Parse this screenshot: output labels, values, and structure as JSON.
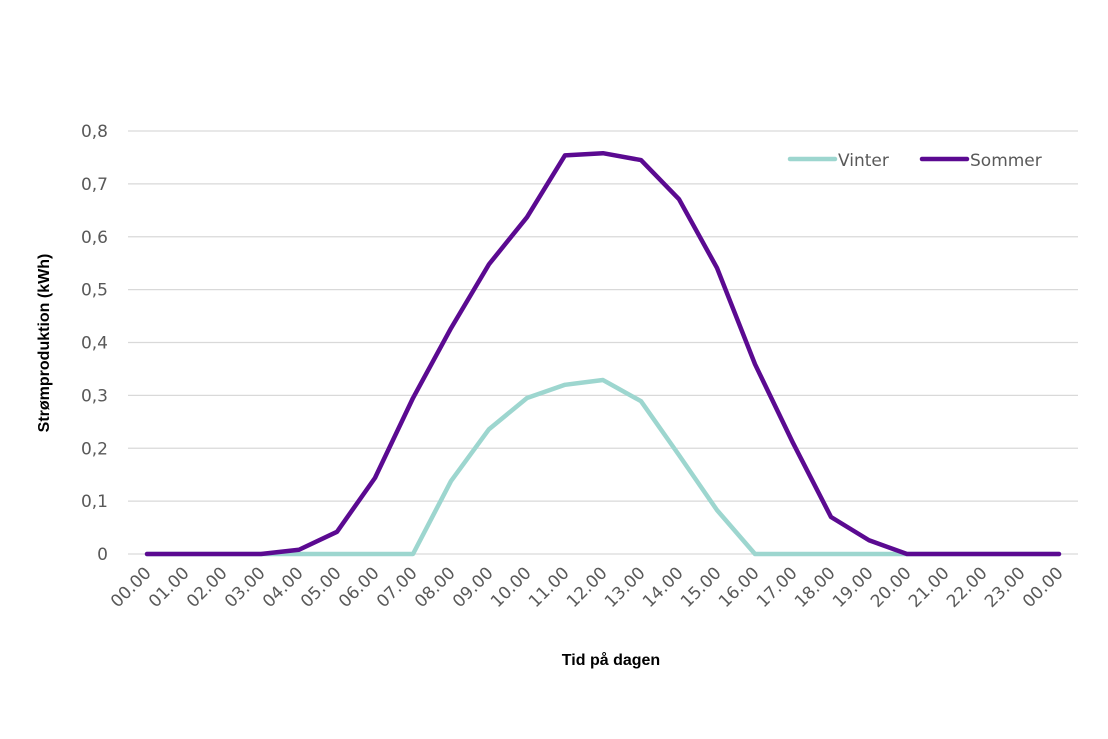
{
  "chart_data": {
    "type": "line",
    "title": "",
    "xlabel": "Tid på dagen",
    "ylabel": "Strømproduktion (kWh)",
    "ylim": [
      0,
      0.8
    ],
    "yticks": [
      "0",
      "0,1",
      "0,2",
      "0,3",
      "0,4",
      "0,5",
      "0,6",
      "0,7",
      "0,8"
    ],
    "ytick_values": [
      0,
      0.1,
      0.2,
      0.3,
      0.4,
      0.5,
      0.6,
      0.7,
      0.8
    ],
    "categories": [
      "00.00",
      "01.00",
      "02.00",
      "03.00",
      "04.00",
      "05.00",
      "06.00",
      "07.00",
      "08.00",
      "09.00",
      "10.00",
      "11.00",
      "12.00",
      "13.00",
      "14.00",
      "15.00",
      "16.00",
      "17.00",
      "18.00",
      "19.00",
      "20.00",
      "21.00",
      "22.00",
      "23.00",
      "00.00"
    ],
    "grid": true,
    "legend_position": "top-right",
    "series": [
      {
        "name": "Vinter",
        "color": "#9DD6CF",
        "values": [
          0,
          0,
          0,
          0,
          0,
          0,
          0,
          0,
          0.138,
          0.236,
          0.295,
          0.32,
          0.329,
          0.289,
          0.187,
          0.083,
          0,
          0,
          0,
          0,
          0,
          0,
          0,
          0,
          0
        ]
      },
      {
        "name": "Sommer",
        "color": "#5B0A91",
        "values": [
          0,
          0,
          0,
          0,
          0.008,
          0.042,
          0.144,
          0.295,
          0.427,
          0.548,
          0.637,
          0.754,
          0.758,
          0.745,
          0.671,
          0.541,
          0.359,
          0.21,
          0.07,
          0.026,
          0,
          0,
          0,
          0,
          0
        ]
      }
    ]
  }
}
